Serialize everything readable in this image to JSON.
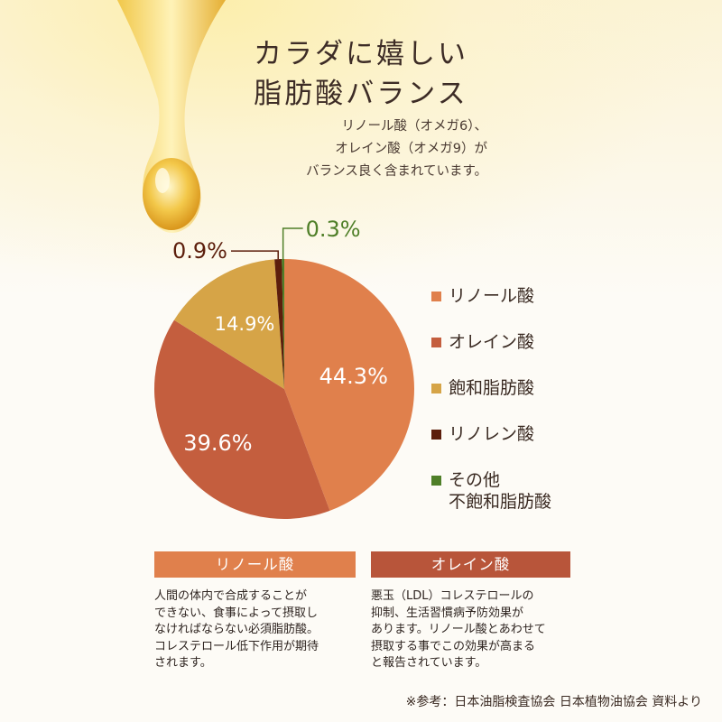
{
  "header": {
    "title_lines": [
      "カラダに嬉しい",
      "脂肪酸バランス"
    ],
    "subtitle_lines": [
      "リノール酸（オメガ6）、",
      "オレイン酸（オメガ9）が",
      "バランス良く含まれています。"
    ]
  },
  "chart_data": {
    "type": "pie",
    "title": "",
    "slices": [
      {
        "name": "リノール酸",
        "value": 44.3,
        "label": "44.3%",
        "color": "#e0804c"
      },
      {
        "name": "オレイン酸",
        "value": 39.6,
        "label": "39.6%",
        "color": "#c45e3e"
      },
      {
        "name": "飽和脂肪酸",
        "value": 14.9,
        "label": "14.9%",
        "color": "#d6a447"
      },
      {
        "name": "リノレン酸",
        "value": 0.9,
        "label": "0.9%",
        "color": "#5c1e0c"
      },
      {
        "name": "その他 不飽和脂肪酸",
        "value": 0.3,
        "label": "0.3%",
        "color": "#4f7f28"
      }
    ],
    "legend_position": "right",
    "legend": [
      {
        "lines": [
          "リノール酸"
        ],
        "color": "#e0804c"
      },
      {
        "lines": [
          "オレイン酸"
        ],
        "color": "#c45e3e"
      },
      {
        "lines": [
          "飽和脂肪酸"
        ],
        "color": "#d6a447"
      },
      {
        "lines": [
          "リノレン酸"
        ],
        "color": "#5c1e0c"
      },
      {
        "lines": [
          "その他",
          "不飽和脂肪酸"
        ],
        "color": "#4f7f28"
      }
    ]
  },
  "cards": [
    {
      "title": "リノール酸",
      "color": "#e0804c",
      "lines": [
        "人間の体内で合成することが",
        "できない、食事によって摂取し",
        "なければならない必須脂肪酸。",
        "コレステロール低下作用が期待",
        "されます。"
      ]
    },
    {
      "title": "オレイン酸",
      "color": "#b8553a",
      "lines": [
        "悪玉（LDL）コレステロールの",
        "抑制、生活習慣病予防効果が",
        "あります。リノール酸とあわせて",
        "摂取する事でこの効果が高まる",
        "と報告されています。"
      ]
    }
  ],
  "footnote": "※参考：日本油脂検査協会 日本植物油協会 資料より"
}
